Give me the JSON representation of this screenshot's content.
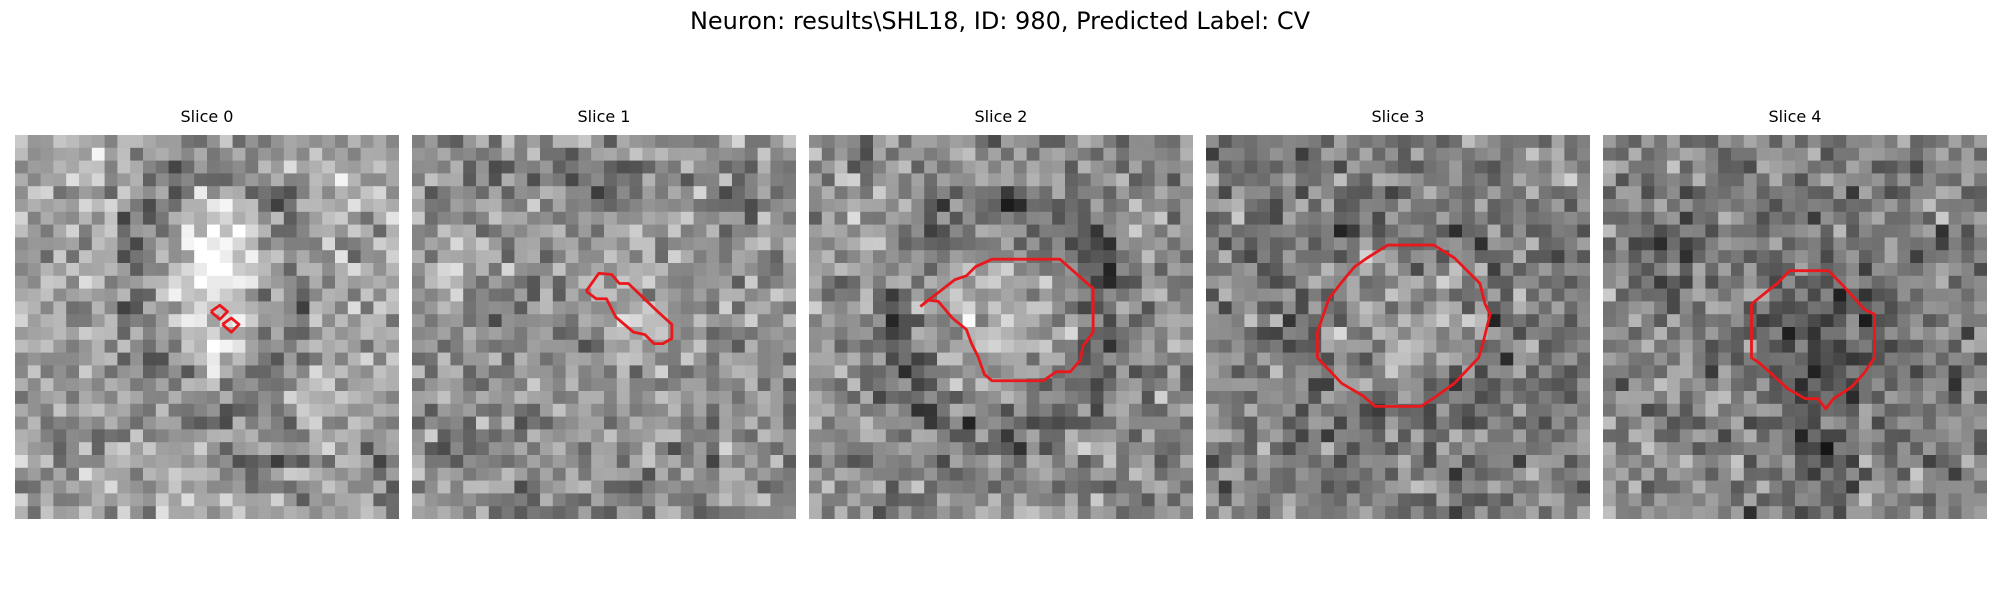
{
  "figure": {
    "title": "Neuron: results\\SHL18, ID: 980, Predicted Label: CV"
  },
  "slices": [
    {
      "label": "Slice 0"
    },
    {
      "label": "Slice 1"
    },
    {
      "label": "Slice 2"
    },
    {
      "label": "Slice 3"
    },
    {
      "label": "Slice 4"
    }
  ],
  "colors": {
    "contour": "#e8181c",
    "colormap": "gray"
  }
}
